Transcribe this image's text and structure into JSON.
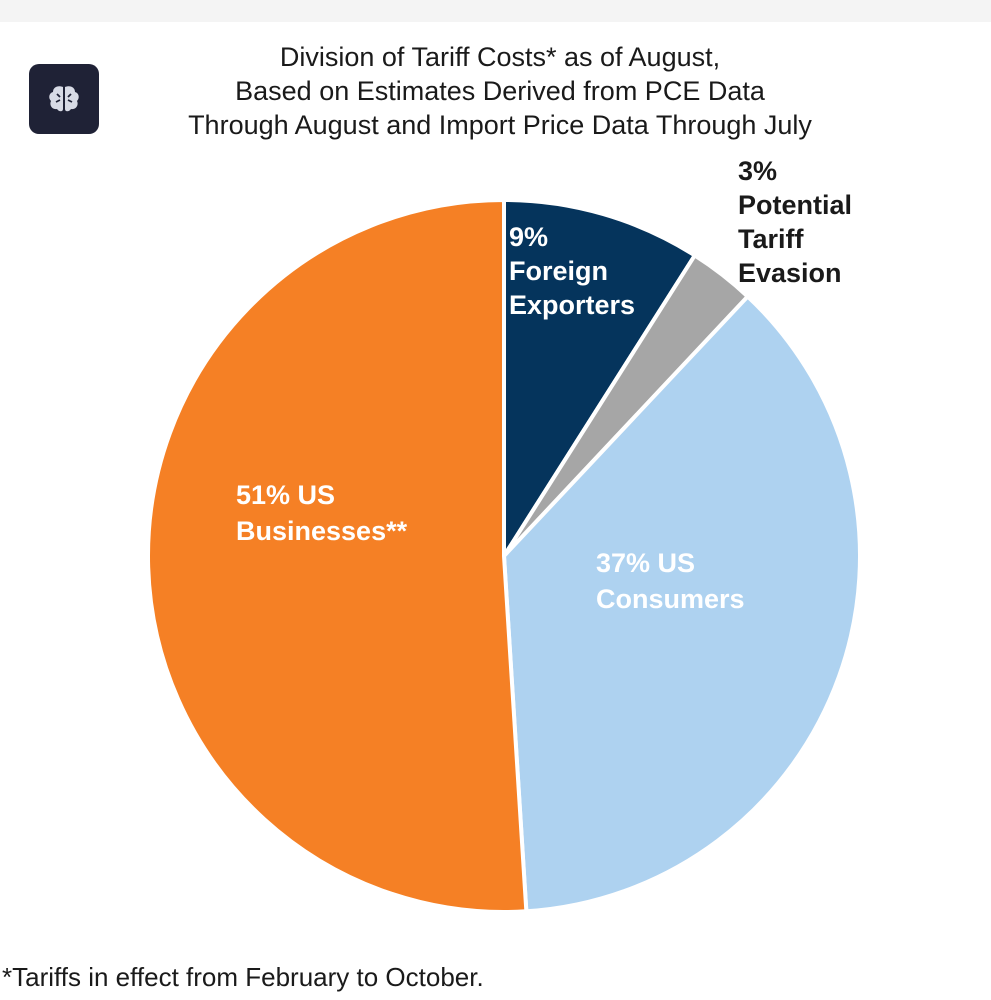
{
  "chart_data": {
    "type": "pie",
    "title": [
      "Division of Tariff Costs* as of August,",
      "Based on Estimates Derived from PCE Data",
      "Through August and Import Price Data Through July"
    ],
    "slices": [
      {
        "name": "Foreign Exporters",
        "value": 9,
        "color": "#05345c",
        "label_lines": [
          "9%",
          "Foreign",
          "Exporters"
        ],
        "label_color": "#ffffff"
      },
      {
        "name": "Potential Tariff Evasion",
        "value": 3,
        "color": "#a6a6a6",
        "label_lines": [
          "3%",
          "Potential",
          "Tariff",
          "Evasion"
        ],
        "label_color": "#1a1a1a"
      },
      {
        "name": "US Consumers",
        "value": 37,
        "color": "#aed2f0",
        "label_lines": [
          "37% US",
          "Consumers"
        ],
        "label_color": "#ffffff"
      },
      {
        "name": "US Businesses",
        "value": 51,
        "color": "#f58025",
        "label_lines": [
          "51% US",
          "Businesses**"
        ],
        "label_color": "#ffffff"
      }
    ],
    "start_angle_deg": 0,
    "direction": "clockwise",
    "footnote": "*Tariffs in effect from February to October."
  },
  "badge": {
    "icon": "brain-icon",
    "background": "#1f2236"
  }
}
